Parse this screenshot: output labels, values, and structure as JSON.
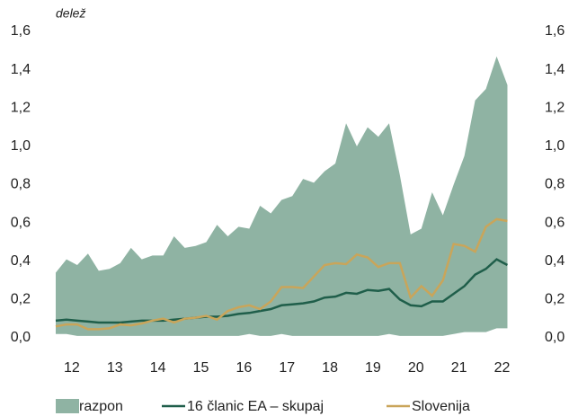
{
  "chart_data": {
    "type": "range-line",
    "title": "delež",
    "x": [
      12.125,
      12.375,
      12.625,
      12.875,
      13.125,
      13.375,
      13.625,
      13.875,
      14.125,
      14.375,
      14.625,
      14.875,
      15.125,
      15.375,
      15.625,
      15.875,
      16.125,
      16.375,
      16.625,
      16.875,
      17.125,
      17.375,
      17.625,
      17.875,
      18.125,
      18.375,
      18.625,
      18.875,
      19.125,
      19.375,
      19.625,
      19.875,
      20.125,
      20.375,
      20.625,
      20.875,
      21.125,
      21.375,
      21.625,
      21.875,
      22.125,
      22.375,
      22.625
    ],
    "xlim": [
      12,
      23.2
    ],
    "xticks": [
      {
        "value": 12.5,
        "label": "12"
      },
      {
        "value": 13.5,
        "label": "13"
      },
      {
        "value": 14.5,
        "label": "14"
      },
      {
        "value": 15.5,
        "label": "15"
      },
      {
        "value": 16.5,
        "label": "16"
      },
      {
        "value": 17.5,
        "label": "17"
      },
      {
        "value": 18.5,
        "label": "18"
      },
      {
        "value": 19.5,
        "label": "19"
      },
      {
        "value": 20.5,
        "label": "20"
      },
      {
        "value": 21.5,
        "label": "21"
      },
      {
        "value": 22.5,
        "label": "22"
      }
    ],
    "ylim": [
      0,
      1.6
    ],
    "yticks": [
      {
        "value": 0,
        "label": "0,0"
      },
      {
        "value": 0.2,
        "label": "0,2"
      },
      {
        "value": 0.4,
        "label": "0,4"
      },
      {
        "value": 0.6,
        "label": "0,6"
      },
      {
        "value": 0.8,
        "label": "0,8"
      },
      {
        "value": 1.0,
        "label": "1,0"
      },
      {
        "value": 1.2,
        "label": "1,2"
      },
      {
        "value": 1.4,
        "label": "1,4"
      },
      {
        "value": 1.6,
        "label": "1,6"
      }
    ],
    "y2lim": [
      0,
      1.6
    ],
    "y2ticks": [
      {
        "value": 0,
        "label": "0,0"
      },
      {
        "value": 0.2,
        "label": "0,2"
      },
      {
        "value": 0.4,
        "label": "0,4"
      },
      {
        "value": 0.6,
        "label": "0,6"
      },
      {
        "value": 0.8,
        "label": "0,8"
      },
      {
        "value": 1.0,
        "label": "1,0"
      },
      {
        "value": 1.2,
        "label": "1,2"
      },
      {
        "value": 1.4,
        "label": "1,4"
      },
      {
        "value": 1.6,
        "label": "1,6"
      }
    ],
    "band": {
      "name": "razpon",
      "color": "#8fb3a3",
      "high": [
        0.34,
        0.41,
        0.38,
        0.44,
        0.35,
        0.36,
        0.39,
        0.47,
        0.41,
        0.43,
        0.43,
        0.53,
        0.47,
        0.48,
        0.5,
        0.59,
        0.53,
        0.58,
        0.57,
        0.69,
        0.65,
        0.72,
        0.74,
        0.83,
        0.81,
        0.87,
        0.91,
        1.12,
        1.0,
        1.1,
        1.05,
        1.12,
        0.85,
        0.54,
        0.57,
        0.76,
        0.64,
        0.8,
        0.95,
        1.24,
        1.3,
        1.47,
        1.32
      ],
      "low": [
        0.02,
        0.02,
        0.01,
        0.01,
        0.01,
        0.01,
        0.01,
        0.01,
        0.01,
        0.01,
        0.01,
        0.01,
        0.01,
        0.01,
        0.01,
        0.01,
        0.01,
        0.01,
        0.02,
        0.01,
        0.01,
        0.02,
        0.01,
        0.01,
        0.01,
        0.01,
        0.01,
        0.01,
        0.01,
        0.01,
        0.01,
        0.02,
        0.01,
        0.01,
        0.01,
        0.01,
        0.01,
        0.02,
        0.03,
        0.03,
        0.03,
        0.05,
        0.05
      ]
    },
    "series": [
      {
        "name": "16 članic EA – skupaj",
        "color": "#1f5e4a",
        "values": [
          0.09,
          0.095,
          0.09,
          0.085,
          0.08,
          0.08,
          0.08,
          0.085,
          0.09,
          0.09,
          0.09,
          0.095,
          0.1,
          0.105,
          0.11,
          0.11,
          0.115,
          0.125,
          0.13,
          0.14,
          0.15,
          0.17,
          0.175,
          0.18,
          0.19,
          0.21,
          0.215,
          0.235,
          0.23,
          0.25,
          0.245,
          0.255,
          0.2,
          0.17,
          0.165,
          0.19,
          0.19,
          0.23,
          0.27,
          0.33,
          0.36,
          0.41,
          0.38
        ]
      },
      {
        "name": "Slovenija",
        "color": "#c9a55a",
        "values": [
          0.06,
          0.07,
          0.07,
          0.045,
          0.045,
          0.05,
          0.07,
          0.065,
          0.075,
          0.09,
          0.1,
          0.08,
          0.1,
          0.105,
          0.115,
          0.095,
          0.14,
          0.16,
          0.17,
          0.15,
          0.19,
          0.265,
          0.265,
          0.26,
          0.32,
          0.38,
          0.39,
          0.385,
          0.435,
          0.42,
          0.37,
          0.39,
          0.39,
          0.21,
          0.27,
          0.22,
          0.3,
          0.49,
          0.48,
          0.45,
          0.58,
          0.62,
          0.61
        ]
      }
    ]
  }
}
